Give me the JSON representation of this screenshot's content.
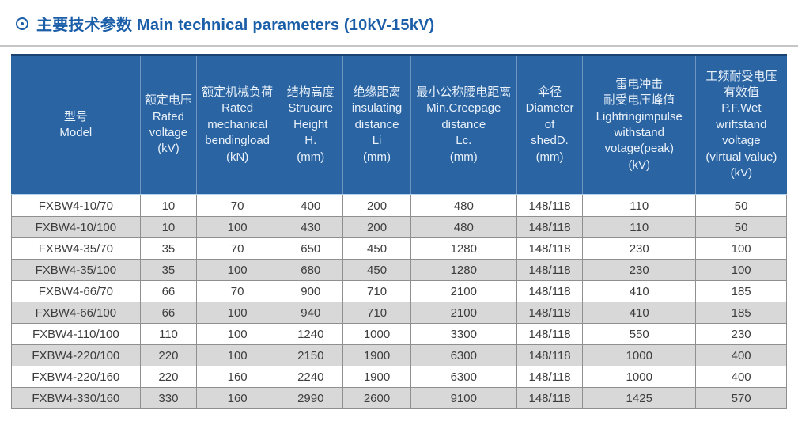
{
  "page": {
    "title": "主要技术参数 Main technical parameters (10kV-15kV)",
    "title_icon": "circled-dot"
  },
  "colors": {
    "accent_blue": "#1c5fa9",
    "header_bg": "#2a64a2",
    "header_top_border": "#1a4272",
    "header_bottom_border": "#b7d2ec",
    "header_text": "#e9f1fb",
    "row_bg": "#ffffff",
    "row_alt_bg": "#d8d8d8",
    "cell_border": "#8f8f8f",
    "cell_text": "#3d3d3d"
  },
  "table": {
    "columns": [
      {
        "id": "model",
        "label": "型号\nModel"
      },
      {
        "id": "voltage",
        "label": "额定电压\nRated\nvoltage\n(kV)"
      },
      {
        "id": "load",
        "label": "额定机械负荷\nRated\nmechanical\nbendingload\n(kN)"
      },
      {
        "id": "height",
        "label": "结构高度\nStrucure\nHeight\nH.\n(mm)"
      },
      {
        "id": "insulating",
        "label": "绝缘距离\ninsulating\ndistance\nLi\n(mm)"
      },
      {
        "id": "creepage",
        "label": "最小公称腰电距离\nMin.Creepage\ndistance\nLc.\n(mm)"
      },
      {
        "id": "shed",
        "label": "伞径\nDiameter\nof\nshedD.\n(mm)"
      },
      {
        "id": "impulse",
        "label": "雷电冲击\n耐受电压峰值\nLightringimpulse\nwithstand\nvotage(peak)\n(kV)"
      },
      {
        "id": "pf",
        "label": "工频耐受电压\n有效值\nP.F.Wet\nwriftstand\nvoltage\n(virtual value)\n(kV)"
      }
    ],
    "rows": [
      [
        "FXBW4-10/70",
        "10",
        "70",
        "400",
        "200",
        "480",
        "148/118",
        "110",
        "50"
      ],
      [
        "FXBW4-10/100",
        "10",
        "100",
        "430",
        "200",
        "480",
        "148/118",
        "110",
        "50"
      ],
      [
        "FXBW4-35/70",
        "35",
        "70",
        "650",
        "450",
        "1280",
        "148/118",
        "230",
        "100"
      ],
      [
        "FXBW4-35/100",
        "35",
        "100",
        "680",
        "450",
        "1280",
        "148/118",
        "230",
        "100"
      ],
      [
        "FXBW4-66/70",
        "66",
        "70",
        "900",
        "710",
        "2100",
        "148/118",
        "410",
        "185"
      ],
      [
        "FXBW4-66/100",
        "66",
        "100",
        "940",
        "710",
        "2100",
        "148/118",
        "410",
        "185"
      ],
      [
        "FXBW4-110/100",
        "110",
        "100",
        "1240",
        "1000",
        "3300",
        "148/118",
        "550",
        "230"
      ],
      [
        "FXBW4-220/100",
        "220",
        "100",
        "2150",
        "1900",
        "6300",
        "148/118",
        "1000",
        "400"
      ],
      [
        "FXBW4-220/160",
        "220",
        "160",
        "2240",
        "1900",
        "6300",
        "148/118",
        "1000",
        "400"
      ],
      [
        "FXBW4-330/160",
        "330",
        "160",
        "2990",
        "2600",
        "9100",
        "148/118",
        "1425",
        "570"
      ]
    ]
  }
}
